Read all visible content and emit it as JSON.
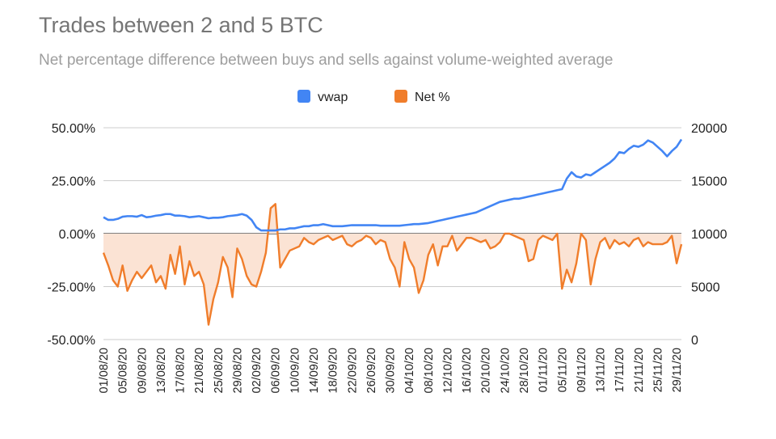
{
  "chart_data": {
    "type": "line",
    "title": "Trades between 2 and 5 BTC",
    "subtitle": "Net percentage difference between buys and sells against volume-weighted average",
    "legend": [
      "vwap",
      "Net %"
    ],
    "legend_position": "top-center",
    "colors": {
      "vwap": "#4285f4",
      "net": "#f07d2b",
      "net_fill": "#fbe3d4",
      "grid": "#cccccc",
      "zero": "#333333"
    },
    "y_left": {
      "range": [
        -50,
        50
      ],
      "ticks": [
        "50.00%",
        "25.00%",
        "0.00%",
        "-25.00%",
        "-50.00%"
      ],
      "values": [
        50,
        25,
        0,
        -25,
        -50
      ]
    },
    "y_right": {
      "range": [
        0,
        20000
      ],
      "ticks": [
        "20000",
        "15000",
        "10000",
        "5000",
        "0"
      ],
      "values": [
        20000,
        15000,
        10000,
        5000,
        0
      ]
    },
    "x_tick_labels": [
      "01/08/20",
      "05/08/20",
      "09/08/20",
      "13/08/20",
      "17/08/20",
      "21/08/20",
      "25/08/20",
      "29/08/20",
      "02/09/20",
      "06/09/20",
      "10/09/20",
      "14/09/20",
      "18/09/20",
      "22/09/20",
      "26/09/20",
      "30/09/20",
      "04/10/20",
      "08/10/20",
      "12/10/20",
      "16/10/20",
      "20/10/20",
      "24/10/20",
      "28/10/20",
      "01/11/20",
      "05/11/20",
      "09/11/20",
      "13/11/20",
      "17/11/20",
      "21/11/20",
      "25/11/20",
      "29/11/20"
    ],
    "x_tick_interval_days": 4,
    "days": 122,
    "series": [
      {
        "name": "vwap",
        "axis": "right",
        "values": [
          11550,
          11300,
          11300,
          11400,
          11600,
          11650,
          11650,
          11600,
          11750,
          11550,
          11600,
          11700,
          11750,
          11850,
          11850,
          11700,
          11700,
          11650,
          11550,
          11600,
          11650,
          11550,
          11450,
          11500,
          11500,
          11550,
          11650,
          11700,
          11750,
          11850,
          11700,
          11300,
          10600,
          10300,
          10300,
          10300,
          10300,
          10400,
          10400,
          10500,
          10500,
          10600,
          10700,
          10700,
          10800,
          10800,
          10900,
          10800,
          10700,
          10700,
          10700,
          10750,
          10800,
          10800,
          10800,
          10800,
          10800,
          10800,
          10750,
          10750,
          10750,
          10750,
          10750,
          10800,
          10850,
          10900,
          10900,
          10950,
          11000,
          11100,
          11200,
          11300,
          11400,
          11500,
          11600,
          11700,
          11800,
          11900,
          12000,
          12200,
          12400,
          12600,
          12800,
          13000,
          13100,
          13200,
          13300,
          13300,
          13400,
          13500,
          13600,
          13700,
          13800,
          13900,
          14000,
          14100,
          14200,
          15200,
          15800,
          15400,
          15300,
          15600,
          15500,
          15800,
          16100,
          16400,
          16700,
          17100,
          17700,
          17600,
          18000,
          18300,
          18200,
          18400,
          18800,
          18600,
          18200,
          17800,
          17300,
          17800,
          18200,
          18900
        ]
      },
      {
        "name": "Net %",
        "axis": "left",
        "values": [
          -9,
          -15,
          -22,
          -25,
          -15,
          -27,
          -22,
          -18,
          -21,
          -18,
          -15,
          -23,
          -20,
          -26,
          -10,
          -19,
          -6,
          -24,
          -13,
          -20,
          -18,
          -24,
          -43,
          -31,
          -23,
          -11,
          -16,
          -30,
          -7,
          -12,
          -20,
          -24,
          -25,
          -18,
          -9,
          12,
          14,
          -16,
          -12,
          -8,
          -7,
          -6,
          -2,
          -4,
          -5,
          -3,
          -2,
          -1,
          -3,
          -2,
          -1,
          -5,
          -6,
          -4,
          -3,
          -1,
          -2,
          -5,
          -3,
          -4,
          -12,
          -16,
          -25,
          -4,
          -12,
          -16,
          -28,
          -22,
          -10,
          -5,
          -15,
          -6,
          -6,
          -1,
          -8,
          -5,
          -2,
          -2,
          -3,
          -4,
          -3,
          -7,
          -6,
          -4,
          0,
          0,
          -1,
          -2,
          -3,
          -13,
          -12,
          -3,
          -1,
          -2,
          -3,
          0,
          -26,
          -17,
          -23,
          -14,
          0,
          -3,
          -24,
          -12,
          -4,
          -2,
          -7,
          -3,
          -5,
          -4,
          -6,
          -3,
          -2,
          -6,
          -4,
          -5,
          -5,
          -5,
          -4,
          -1,
          -14,
          -5
        ]
      }
    ]
  }
}
